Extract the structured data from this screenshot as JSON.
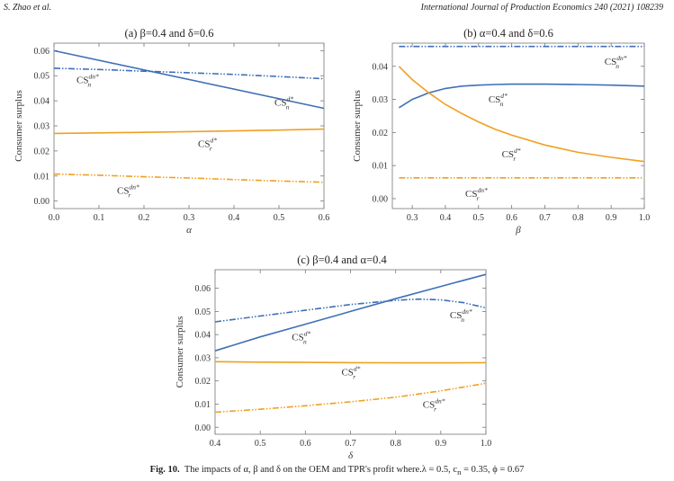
{
  "header": {
    "left": "S. Zhao et al.",
    "right": "International Journal of Production Economics 240 (2021) 108239"
  },
  "caption": {
    "label": "Fig. 10.",
    "text": "The impacts of α, β and δ on the OEM and TPR's profit where.λ = 0.5,  c",
    "text_sub": "n",
    "text_tail": " = 0.35,  ϕ = 0.67"
  },
  "colors": {
    "blue": "#3f6fb6",
    "orange": "#f0a020"
  },
  "chart_data": [
    {
      "id": "a",
      "type": "line",
      "title": "(a) β=0.4 and δ=0.6",
      "xlabel": "α",
      "ylabel": "Consumer surplus",
      "xlim": [
        0.0,
        0.6
      ],
      "ylim": [
        -0.003,
        0.063
      ],
      "xticks": [
        0.0,
        0.1,
        0.2,
        0.3,
        0.4,
        0.5,
        0.6
      ],
      "xtick_labels": [
        "0.0",
        "0.1",
        "0.2",
        "0.3",
        "0.4",
        "0.5",
        "0.6"
      ],
      "yticks": [
        0.0,
        0.01,
        0.02,
        0.03,
        0.04,
        0.05,
        0.06
      ],
      "ytick_labels": [
        "0.00",
        "0.01",
        "0.02",
        "0.03",
        "0.04",
        "0.05",
        "0.06"
      ],
      "series": [
        {
          "name": "CS_n^{d*}",
          "label_main": "CS",
          "label_sup": "d*",
          "label_sub": "n",
          "color": "blue",
          "style": "solid",
          "x": [
            0.0,
            0.6
          ],
          "y": [
            0.06,
            0.037
          ],
          "label_at": [
            0.49,
            0.038
          ]
        },
        {
          "name": "CS_n^{dn*}",
          "label_main": "CS",
          "label_sup": "dn*",
          "label_sub": "n",
          "color": "blue",
          "style": "dashdot",
          "x": [
            0.0,
            0.1,
            0.2,
            0.3,
            0.4,
            0.5,
            0.6
          ],
          "y": [
            0.053,
            0.0525,
            0.0518,
            0.0512,
            0.0505,
            0.0497,
            0.0488
          ],
          "label_at": [
            0.05,
            0.047
          ]
        },
        {
          "name": "CS_r^{d*}",
          "label_main": "CS",
          "label_sup": "d*",
          "label_sub": "r",
          "color": "orange",
          "style": "solid",
          "x": [
            0.0,
            0.1,
            0.2,
            0.3,
            0.4,
            0.5,
            0.6
          ],
          "y": [
            0.027,
            0.0272,
            0.0274,
            0.0277,
            0.028,
            0.0283,
            0.0287
          ],
          "label_at": [
            0.32,
            0.0215
          ]
        },
        {
          "name": "CS_r^{dn*}",
          "label_main": "CS",
          "label_sup": "dn*",
          "label_sub": "r",
          "color": "orange",
          "style": "dashdot",
          "x": [
            0.0,
            0.1,
            0.2,
            0.3,
            0.4,
            0.5,
            0.6
          ],
          "y": [
            0.0108,
            0.0103,
            0.0097,
            0.0092,
            0.0086,
            0.008,
            0.0075
          ],
          "label_at": [
            0.14,
            0.003
          ]
        }
      ]
    },
    {
      "id": "b",
      "type": "line",
      "title": "(b) α=0.4 and δ=0.6",
      "xlabel": "β",
      "ylabel": "Consumer surplus",
      "xlim": [
        0.24,
        1.0
      ],
      "ylim": [
        -0.003,
        0.047
      ],
      "xticks": [
        0.3,
        0.4,
        0.5,
        0.6,
        0.7,
        0.8,
        0.9,
        1.0
      ],
      "xtick_labels": [
        "0.3",
        "0.4",
        "0.5",
        "0.6",
        "0.7",
        "0.8",
        "0.9",
        "1.0"
      ],
      "yticks": [
        0.0,
        0.01,
        0.02,
        0.03,
        0.04
      ],
      "ytick_labels": [
        "0.00",
        "0.01",
        "0.02",
        "0.03",
        "0.04"
      ],
      "series": [
        {
          "name": "CS_n^{d*}",
          "label_main": "CS",
          "label_sup": "d*",
          "label_sub": "n",
          "color": "blue",
          "style": "solid",
          "x": [
            0.26,
            0.3,
            0.35,
            0.4,
            0.45,
            0.5,
            0.55,
            0.6,
            0.7,
            0.8,
            0.9,
            1.0
          ],
          "y": [
            0.0275,
            0.03,
            0.032,
            0.0333,
            0.034,
            0.0343,
            0.0345,
            0.0346,
            0.0346,
            0.0345,
            0.0343,
            0.034
          ],
          "label_at": [
            0.53,
            0.029
          ]
        },
        {
          "name": "CS_n^{dn*}",
          "label_main": "CS",
          "label_sup": "dn*",
          "label_sub": "n",
          "color": "blue",
          "style": "dashdot",
          "x": [
            0.26,
            1.0
          ],
          "y": [
            0.046,
            0.046
          ],
          "label_at": [
            0.88,
            0.0405
          ]
        },
        {
          "name": "CS_r^{d*}",
          "label_main": "CS",
          "label_sup": "d*",
          "label_sub": "r",
          "color": "orange",
          "style": "solid",
          "x": [
            0.26,
            0.3,
            0.35,
            0.4,
            0.45,
            0.5,
            0.55,
            0.6,
            0.7,
            0.8,
            0.9,
            1.0
          ],
          "y": [
            0.04,
            0.036,
            0.032,
            0.0285,
            0.0257,
            0.0232,
            0.021,
            0.0192,
            0.0162,
            0.014,
            0.0125,
            0.0112
          ],
          "label_at": [
            0.57,
            0.0125
          ]
        },
        {
          "name": "CS_r^{dn*}",
          "label_main": "CS",
          "label_sup": "dn*",
          "label_sub": "r",
          "color": "orange",
          "style": "dashdot",
          "x": [
            0.26,
            1.0
          ],
          "y": [
            0.0063,
            0.0063
          ],
          "label_at": [
            0.46,
            0.0005
          ]
        }
      ]
    },
    {
      "id": "c",
      "type": "line",
      "title": "(c) β=0.4 and α=0.4",
      "xlabel": "δ",
      "ylabel": "Consumer surplus",
      "xlim": [
        0.4,
        1.0
      ],
      "ylim": [
        -0.003,
        0.068
      ],
      "xticks": [
        0.4,
        0.5,
        0.6,
        0.7,
        0.8,
        0.9,
        1.0
      ],
      "xtick_labels": [
        "0.4",
        "0.5",
        "0.6",
        "0.7",
        "0.8",
        "0.9",
        "1.0"
      ],
      "yticks": [
        0.0,
        0.01,
        0.02,
        0.03,
        0.04,
        0.05,
        0.06
      ],
      "ytick_labels": [
        "0.00",
        "0.01",
        "0.02",
        "0.03",
        "0.04",
        "0.05",
        "0.06"
      ],
      "series": [
        {
          "name": "CS_n^{d*}",
          "label_main": "CS",
          "label_sup": "d*",
          "label_sub": "n",
          "color": "blue",
          "style": "solid",
          "x": [
            0.4,
            0.5,
            0.6,
            0.7,
            0.8,
            0.9,
            1.0
          ],
          "y": [
            0.033,
            0.039,
            0.0445,
            0.05,
            0.0555,
            0.0608,
            0.066
          ],
          "label_at": [
            0.57,
            0.0375
          ]
        },
        {
          "name": "CS_n^{dn*}",
          "label_main": "CS",
          "label_sup": "dn*",
          "label_sub": "n",
          "color": "blue",
          "style": "dashdot",
          "x": [
            0.4,
            0.5,
            0.6,
            0.7,
            0.8,
            0.85,
            0.9,
            0.95,
            1.0
          ],
          "y": [
            0.0455,
            0.048,
            0.0505,
            0.053,
            0.0548,
            0.0553,
            0.055,
            0.0538,
            0.0515
          ],
          "label_at": [
            0.92,
            0.047
          ]
        },
        {
          "name": "CS_r^{d*}",
          "label_main": "CS",
          "label_sup": "d*",
          "label_sub": "r",
          "color": "orange",
          "style": "solid",
          "x": [
            0.4,
            0.5,
            0.6,
            0.7,
            0.8,
            0.9,
            1.0
          ],
          "y": [
            0.0283,
            0.0281,
            0.028,
            0.0279,
            0.0278,
            0.0278,
            0.0279
          ],
          "label_at": [
            0.68,
            0.0225
          ]
        },
        {
          "name": "CS_r^{dn*}",
          "label_main": "CS",
          "label_sup": "dn*",
          "label_sub": "r",
          "color": "orange",
          "style": "dashdot",
          "x": [
            0.4,
            0.5,
            0.6,
            0.7,
            0.8,
            0.9,
            1.0
          ],
          "y": [
            0.0065,
            0.0078,
            0.0093,
            0.011,
            0.013,
            0.0157,
            0.019
          ],
          "label_at": [
            0.86,
            0.0085
          ]
        }
      ]
    }
  ]
}
